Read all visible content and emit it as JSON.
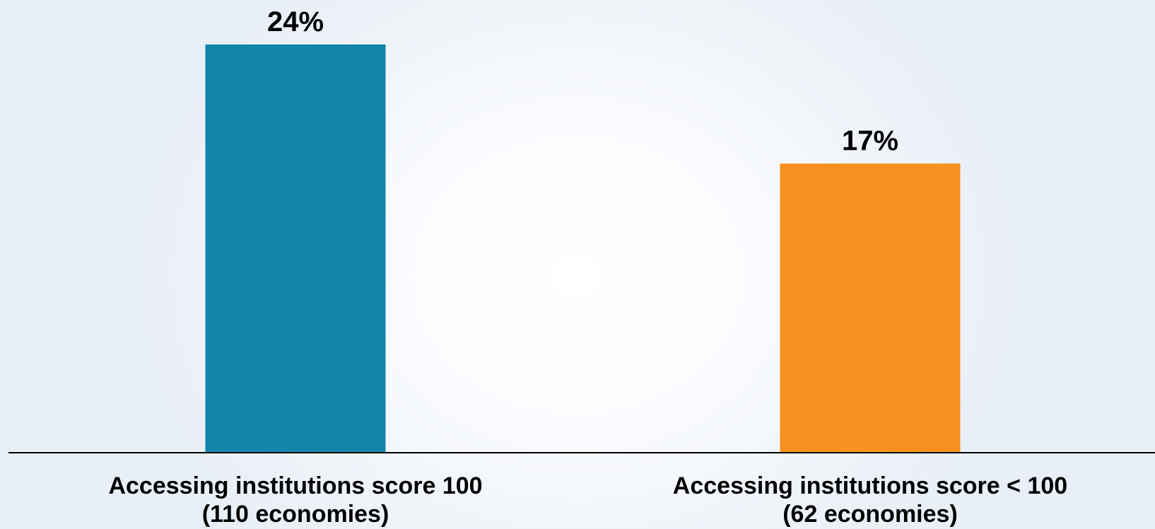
{
  "chart_data": {
    "type": "bar",
    "categories": [
      [
        "Accessing institutions score 100",
        "(110 economies)"
      ],
      [
        "Accessing institutions score < 100",
        "(62 economies)"
      ]
    ],
    "values": [
      24,
      17
    ],
    "value_labels": [
      "24%",
      "17%"
    ],
    "colors": [
      "#1485aa",
      "#f7901e"
    ],
    "title": "",
    "xlabel": "",
    "ylabel": "",
    "ylim": [
      0,
      24
    ],
    "grid": false,
    "legend": "none"
  }
}
